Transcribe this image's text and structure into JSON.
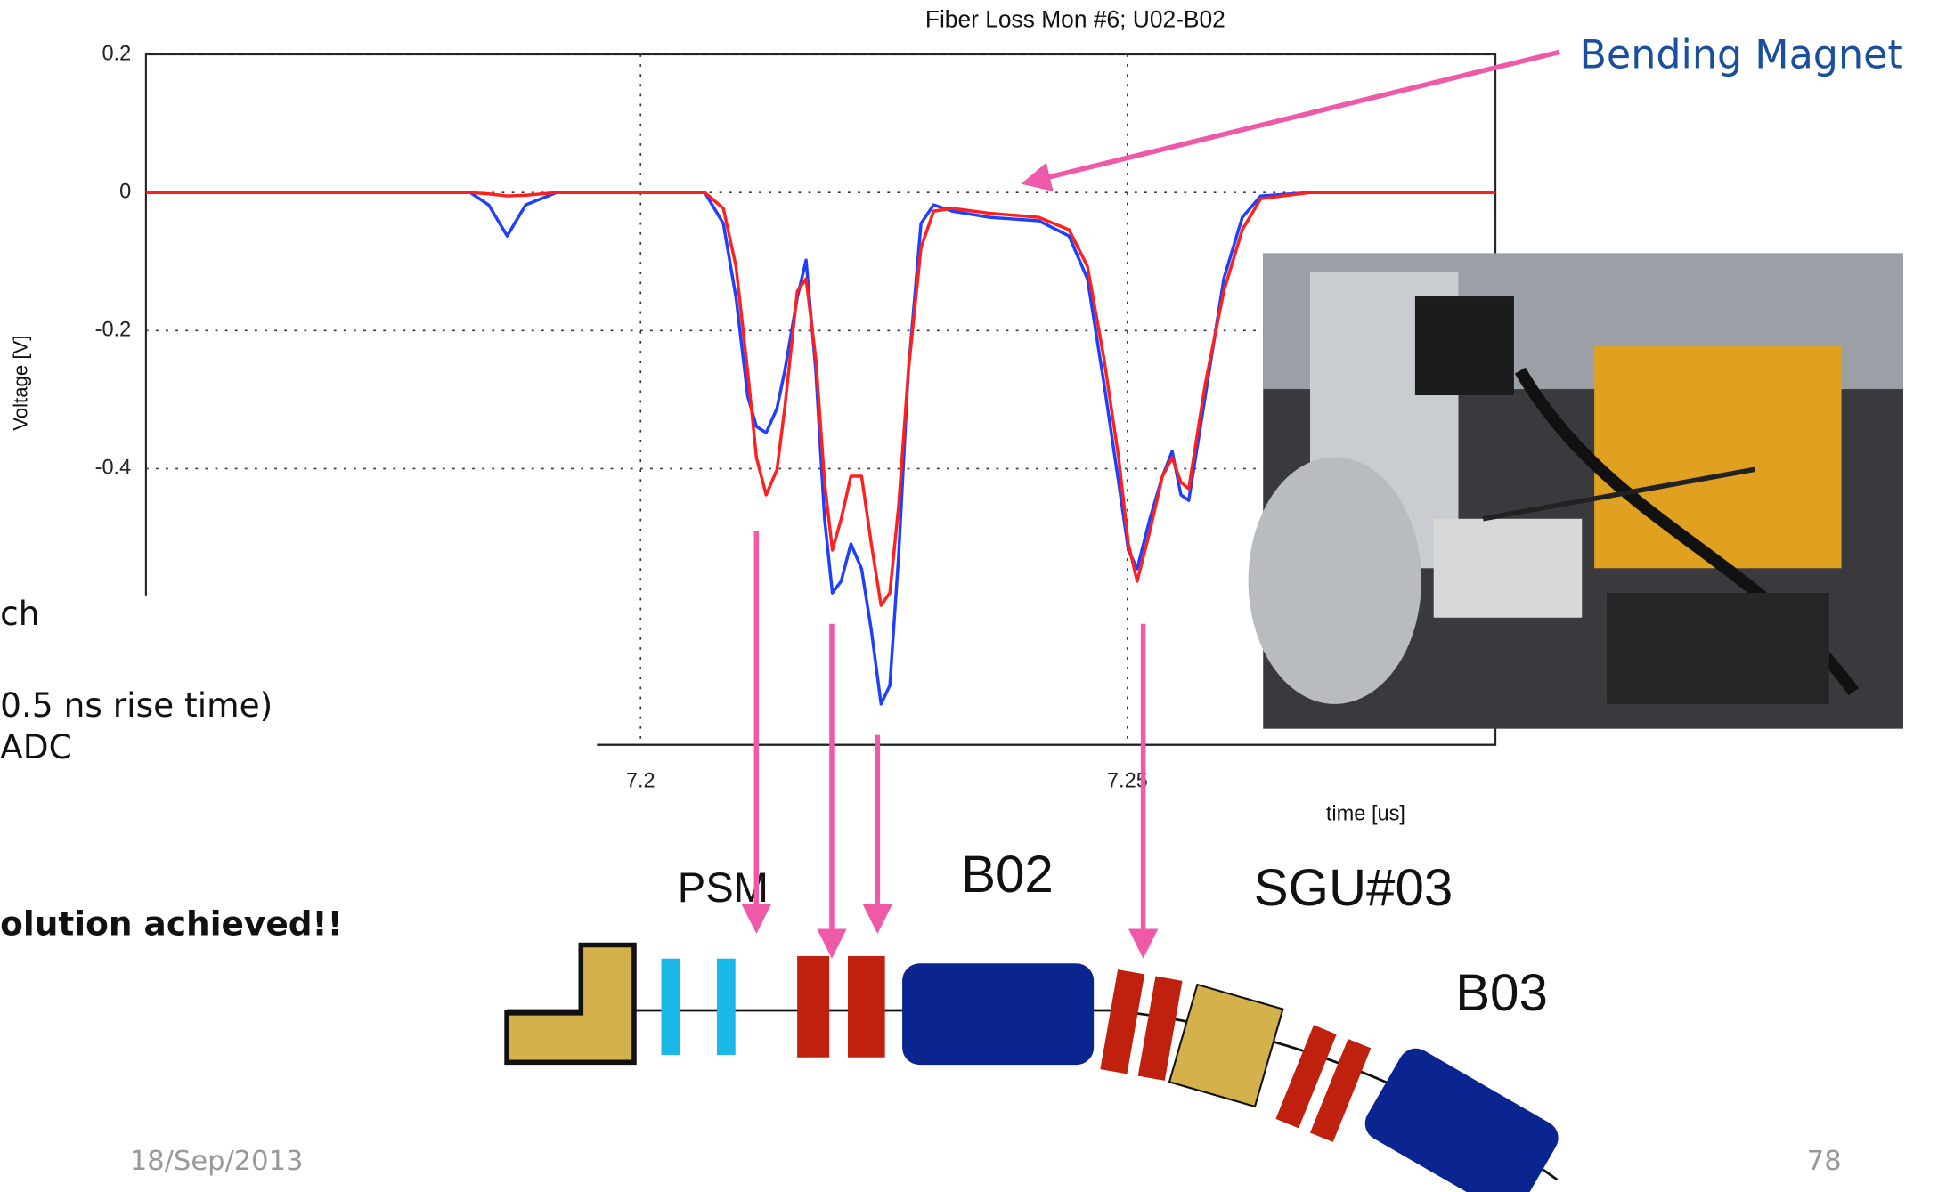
{
  "chart_data": {
    "type": "line",
    "title": "Fiber Loss Mon #6; U02-B02",
    "y_label": "Voltage [V]",
    "x_label": "time [us]",
    "x": [
      7.1492,
      7.1825,
      7.1844,
      7.1863,
      7.1882,
      7.1914,
      7.2066,
      7.2085,
      7.2098,
      7.211,
      7.2119,
      7.2129,
      7.214,
      7.2148,
      7.2161,
      7.217,
      7.218,
      7.2189,
      7.2197,
      7.2206,
      7.2216,
      7.2227,
      7.2237,
      7.2247,
      7.2256,
      7.2265,
      7.2275,
      7.2288,
      7.2301,
      7.232,
      7.2358,
      7.2409,
      7.244,
      7.2459,
      7.2476,
      7.2491,
      7.2501,
      7.251,
      7.2523,
      7.2536,
      7.2546,
      7.2555,
      7.2563,
      7.258,
      7.2599,
      7.2618,
      7.2637,
      7.2688,
      7.2878
    ],
    "series": [
      {
        "color": "#1f3fff",
        "values": [
          0,
          0,
          -0.018,
          -0.063,
          -0.018,
          0,
          0,
          -0.045,
          -0.152,
          -0.295,
          -0.339,
          -0.348,
          -0.313,
          -0.259,
          -0.152,
          -0.098,
          -0.259,
          -0.473,
          -0.58,
          -0.563,
          -0.509,
          -0.545,
          -0.634,
          -0.741,
          -0.714,
          -0.527,
          -0.259,
          -0.045,
          -0.018,
          -0.027,
          -0.036,
          -0.041,
          -0.063,
          -0.125,
          -0.277,
          -0.42,
          -0.518,
          -0.545,
          -0.473,
          -0.411,
          -0.375,
          -0.438,
          -0.446,
          -0.295,
          -0.125,
          -0.036,
          -0.005,
          0,
          0
        ]
      },
      {
        "color": "#ff1f1f",
        "values": [
          0,
          0,
          -0.002,
          -0.005,
          -0.004,
          0,
          0,
          -0.023,
          -0.107,
          -0.259,
          -0.384,
          -0.438,
          -0.402,
          -0.313,
          -0.143,
          -0.125,
          -0.241,
          -0.42,
          -0.518,
          -0.473,
          -0.411,
          -0.411,
          -0.509,
          -0.598,
          -0.58,
          -0.455,
          -0.259,
          -0.08,
          -0.027,
          -0.023,
          -0.03,
          -0.036,
          -0.054,
          -0.107,
          -0.241,
          -0.384,
          -0.509,
          -0.563,
          -0.491,
          -0.411,
          -0.384,
          -0.42,
          -0.429,
          -0.277,
          -0.143,
          -0.054,
          -0.009,
          0,
          0
        ]
      }
    ],
    "xlim": [
      7.1492,
      7.2878
    ],
    "ylim": [
      -0.8,
      0.2
    ],
    "xticks": [
      7.2,
      7.25
    ],
    "yticks": [
      0.2,
      0,
      -0.2,
      -0.4
    ],
    "grid": true
  },
  "annotation": "Bending Magnet",
  "slide_text": [
    "ch",
    "0.5 ns rise time)",
    "ADC",
    "olution achieved!!"
  ],
  "diagram_labels": [
    "PSM",
    "B02",
    "SGU#03",
    "B03"
  ],
  "footer": {
    "date": "18/Sep/2013",
    "page": "78"
  }
}
